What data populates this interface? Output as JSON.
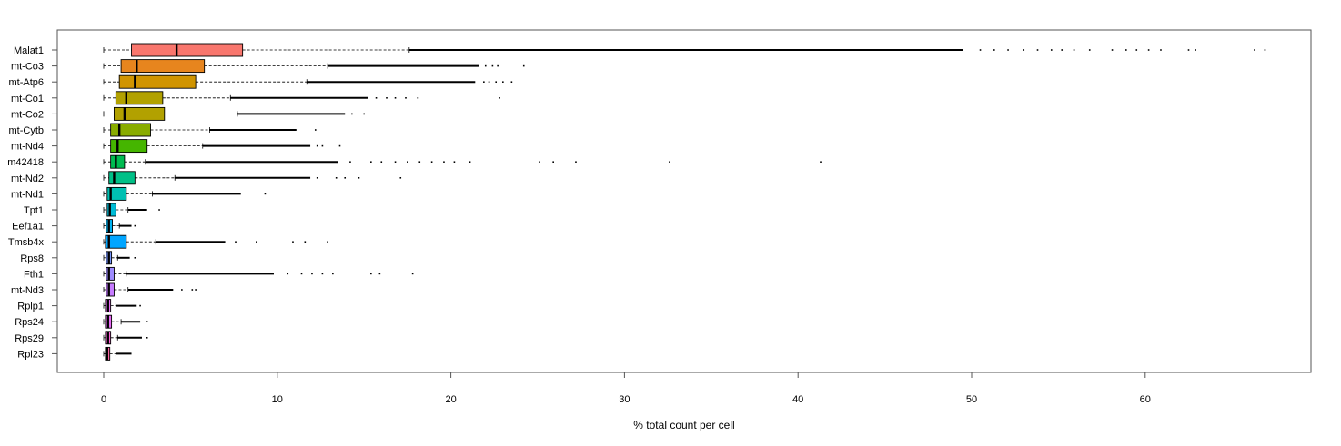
{
  "chart_data": {
    "type": "boxplot",
    "title": "",
    "xlabel": "% total count per cell",
    "ylabel": "",
    "xlim": [
      -2.5,
      69.5
    ],
    "x_ticks": [
      0,
      10,
      20,
      30,
      40,
      50,
      60
    ],
    "grid": false,
    "legend": "none",
    "categories": [
      "Malat1",
      "mt-Co3",
      "mt-Atp6",
      "mt-Co1",
      "mt-Co2",
      "mt-Cytb",
      "mt-Nd4",
      "m42418",
      "mt-Nd2",
      "mt-Nd1",
      "Tpt1",
      "Eef1a1",
      "Tmsb4x",
      "Rps8",
      "Fth1",
      "mt-Nd3",
      "Rplp1",
      "Rps24",
      "Rps29",
      "Rpl23"
    ],
    "series": [
      {
        "gene": "Malat1",
        "color": "#F8766D",
        "whisker_low": 0,
        "q1": 1.6,
        "median": 4.2,
        "q3": 8.0,
        "whisker_high": 17.6,
        "outlier_dense_end": 49.5,
        "outliers": [
          50.5,
          51.3,
          52.1,
          53.0,
          53.8,
          54.6,
          55.2,
          55.9,
          56.8,
          58.1,
          58.9,
          59.5,
          60.2,
          60.9,
          62.5,
          62.9,
          66.3,
          66.9
        ]
      },
      {
        "gene": "mt-Co3",
        "color": "#E7851E",
        "whisker_low": 0,
        "q1": 1.0,
        "median": 1.9,
        "q3": 5.8,
        "whisker_high": 12.9,
        "outlier_dense_end": 21.6,
        "outliers": [
          22.0,
          22.4,
          22.7,
          24.2
        ]
      },
      {
        "gene": "mt-Atp6",
        "color": "#D09400",
        "whisker_low": 0,
        "q1": 0.9,
        "median": 1.8,
        "q3": 5.3,
        "whisker_high": 11.7,
        "outlier_dense_end": 21.4,
        "outliers": [
          21.9,
          22.2,
          22.6,
          23.0,
          23.5
        ]
      },
      {
        "gene": "mt-Co1",
        "color": "#B2A100",
        "whisker_low": 0,
        "q1": 0.7,
        "median": 1.3,
        "q3": 3.4,
        "whisker_high": 7.3,
        "outlier_dense_end": 15.2,
        "outliers": [
          15.7,
          16.3,
          16.8,
          17.4,
          18.1,
          22.8
        ]
      },
      {
        "gene": "mt-Co2",
        "color": "#B2A100",
        "whisker_low": 0,
        "q1": 0.6,
        "median": 1.2,
        "q3": 3.5,
        "whisker_high": 7.7,
        "outlier_dense_end": 13.9,
        "outliers": [
          14.3,
          15.0
        ]
      },
      {
        "gene": "mt-Cytb",
        "color": "#89AC00",
        "whisker_low": 0,
        "q1": 0.4,
        "median": 0.9,
        "q3": 2.7,
        "whisker_high": 6.1,
        "outlier_dense_end": 11.1,
        "outliers": [
          12.2
        ]
      },
      {
        "gene": "mt-Nd4",
        "color": "#45B500",
        "whisker_low": 0,
        "q1": 0.4,
        "median": 0.8,
        "q3": 2.5,
        "whisker_high": 5.7,
        "outlier_dense_end": 11.9,
        "outliers": [
          12.3,
          12.6,
          13.6
        ]
      },
      {
        "gene": "m42418",
        "color": "#00BC51",
        "whisker_low": 0,
        "q1": 0.4,
        "median": 0.7,
        "q3": 1.2,
        "whisker_high": 2.4,
        "outlier_dense_end": 13.5,
        "outliers": [
          14.2,
          15.4,
          16.0,
          16.8,
          17.5,
          18.2,
          18.9,
          19.6,
          20.2,
          21.1,
          25.1,
          25.9,
          27.2,
          32.6,
          41.3
        ]
      },
      {
        "gene": "mt-Nd2",
        "color": "#00C087",
        "whisker_low": 0,
        "q1": 0.3,
        "median": 0.6,
        "q3": 1.8,
        "whisker_high": 4.1,
        "outlier_dense_end": 11.9,
        "outliers": [
          12.3,
          13.4,
          13.9,
          14.7,
          17.1
        ]
      },
      {
        "gene": "mt-Nd1",
        "color": "#00C0B2",
        "whisker_low": 0,
        "q1": 0.2,
        "median": 0.4,
        "q3": 1.3,
        "whisker_high": 2.8,
        "outlier_dense_end": 7.9,
        "outliers": [
          9.3
        ]
      },
      {
        "gene": "Tpt1",
        "color": "#00BCD6",
        "whisker_low": 0,
        "q1": 0.2,
        "median": 0.35,
        "q3": 0.7,
        "whisker_high": 1.4,
        "outlier_dense_end": 2.5,
        "outliers": [
          3.2
        ]
      },
      {
        "gene": "Eef1a1",
        "color": "#00B3F2",
        "whisker_low": 0,
        "q1": 0.15,
        "median": 0.3,
        "q3": 0.5,
        "whisker_high": 0.9,
        "outlier_dense_end": 1.6,
        "outliers": [
          1.8
        ]
      },
      {
        "gene": "Tmsb4x",
        "color": "#00A5FF",
        "whisker_low": 0,
        "q1": 0.1,
        "median": 0.3,
        "q3": 1.3,
        "whisker_high": 3.0,
        "outlier_dense_end": 7.0,
        "outliers": [
          7.6,
          8.8,
          10.9,
          11.6,
          12.9
        ]
      },
      {
        "gene": "Rps8",
        "color": "#7997FF",
        "whisker_low": 0,
        "q1": 0.15,
        "median": 0.3,
        "q3": 0.45,
        "whisker_high": 0.8,
        "outlier_dense_end": 1.5,
        "outliers": [
          1.8
        ]
      },
      {
        "gene": "Fth1",
        "color": "#9F8CFF",
        "whisker_low": 0,
        "q1": 0.15,
        "median": 0.3,
        "q3": 0.6,
        "whisker_high": 1.3,
        "outlier_dense_end": 9.8,
        "outliers": [
          10.6,
          11.4,
          12.0,
          12.6,
          13.2,
          15.4,
          15.9,
          17.8
        ]
      },
      {
        "gene": "mt-Nd3",
        "color": "#C77CFF",
        "whisker_low": 0,
        "q1": 0.15,
        "median": 0.3,
        "q3": 0.6,
        "whisker_high": 1.4,
        "outlier_dense_end": 4.0,
        "outliers": [
          4.5,
          5.1,
          5.3
        ]
      },
      {
        "gene": "Rplp1",
        "color": "#E76BF3",
        "whisker_low": 0,
        "q1": 0.1,
        "median": 0.25,
        "q3": 0.4,
        "whisker_high": 0.7,
        "outlier_dense_end": 1.9,
        "outliers": [
          2.1
        ]
      },
      {
        "gene": "Rps24",
        "color": "#E76BF3",
        "whisker_low": 0,
        "q1": 0.1,
        "median": 0.25,
        "q3": 0.45,
        "whisker_high": 1.0,
        "outlier_dense_end": 2.1,
        "outliers": [
          2.5
        ]
      },
      {
        "gene": "Rps29",
        "color": "#FC61D5",
        "whisker_low": 0,
        "q1": 0.1,
        "median": 0.25,
        "q3": 0.4,
        "whisker_high": 0.8,
        "outlier_dense_end": 2.2,
        "outliers": [
          2.5
        ]
      },
      {
        "gene": "Rpl23",
        "color": "#FF67A4",
        "whisker_low": 0,
        "q1": 0.1,
        "median": 0.2,
        "q3": 0.35,
        "whisker_high": 0.7,
        "outlier_dense_end": 1.6,
        "outliers": []
      }
    ]
  }
}
